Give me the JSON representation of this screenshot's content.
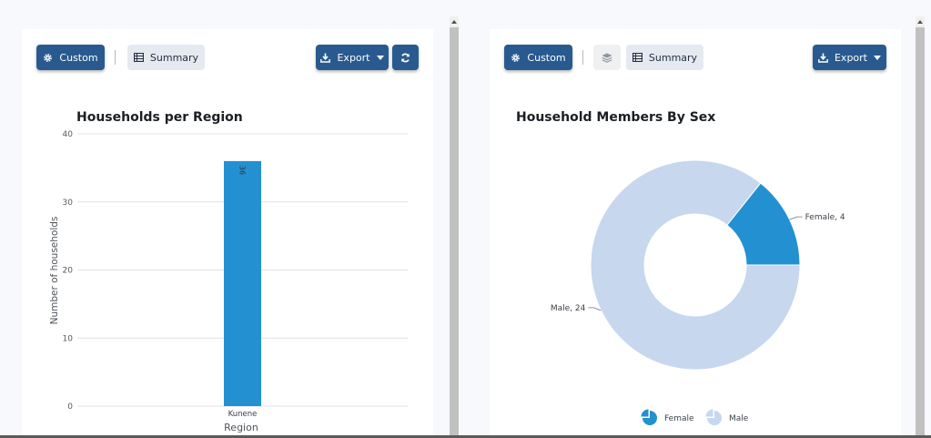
{
  "left_panel": {
    "toolbar": {
      "custom_label": "Custom",
      "summary_label": "Summary",
      "export_label": "Export"
    }
  },
  "right_panel": {
    "toolbar": {
      "custom_label": "Custom",
      "summary_label": "Summary",
      "export_label": "Export"
    }
  },
  "colors": {
    "accent": "#295a8f",
    "bar": "#2390d1",
    "female": "#2390d1",
    "male": "#c6d7ee"
  },
  "chart_data": [
    {
      "type": "bar",
      "title": "Households per Region",
      "categories": [
        "Kunene"
      ],
      "values": [
        36
      ],
      "data_labels": [
        "36"
      ],
      "xlabel": "Region",
      "ylabel": "Number of households",
      "ylim": [
        0,
        40
      ],
      "yticks": [
        "0",
        "10",
        "20",
        "30",
        "40"
      ],
      "grid": true
    },
    {
      "type": "pie",
      "title": "Household Members By Sex",
      "donut": true,
      "labels": [
        "Female",
        "Male"
      ],
      "values": [
        4,
        24
      ],
      "data_labels": [
        "Female, 4",
        "Male, 24"
      ],
      "legend": [
        "Female",
        "Male"
      ],
      "legend_position": "bottom"
    }
  ]
}
